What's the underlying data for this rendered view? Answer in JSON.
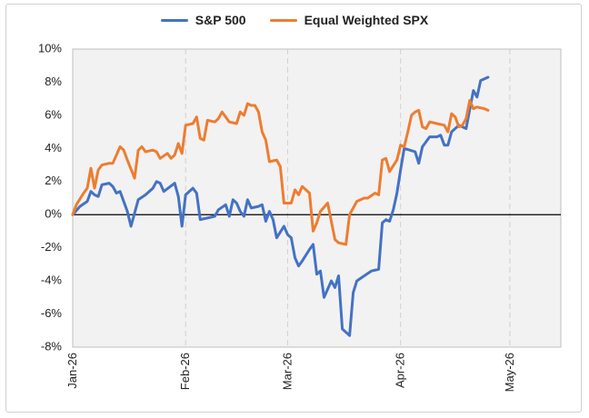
{
  "chart_data": {
    "type": "line",
    "title": "",
    "xlabel": "",
    "ylabel": "",
    "ylim": [
      -8,
      10
    ],
    "y_ticks": [
      "10%",
      "8%",
      "6%",
      "4%",
      "2%",
      "0%",
      "-2%",
      "-4%",
      "-6%",
      "-8%"
    ],
    "y_tick_values": [
      10,
      8,
      6,
      4,
      2,
      0,
      -2,
      -4,
      -6,
      -8
    ],
    "x_ticks": [
      "Jan-26",
      "Feb-26",
      "Mar-26",
      "Apr-26",
      "May-26"
    ],
    "x_tick_days": [
      0,
      31,
      59,
      90,
      120
    ],
    "xlim_days": [
      0,
      134
    ],
    "grid": "vertical dashed at month starts",
    "zero_line": true,
    "legend": "top-center",
    "background": "#f2f2f2",
    "series": [
      {
        "name": "S&P 500",
        "color": "#4472c4",
        "points": [
          [
            0,
            0.0
          ],
          [
            2,
            0.5
          ],
          [
            4,
            0.8
          ],
          [
            5,
            1.4
          ],
          [
            6,
            1.2
          ],
          [
            7,
            1.1
          ],
          [
            8,
            1.8
          ],
          [
            10,
            1.9
          ],
          [
            11,
            1.7
          ],
          [
            12,
            1.3
          ],
          [
            13,
            1.4
          ],
          [
            15,
            0.2
          ],
          [
            16,
            -0.7
          ],
          [
            18,
            0.9
          ],
          [
            20,
            1.2
          ],
          [
            22,
            1.6
          ],
          [
            23,
            2.0
          ],
          [
            24,
            1.9
          ],
          [
            25,
            1.4
          ],
          [
            28,
            1.9
          ],
          [
            29,
            1.1
          ],
          [
            30,
            -0.7
          ],
          [
            31,
            1.2
          ],
          [
            33,
            1.6
          ],
          [
            34,
            1.3
          ],
          [
            35,
            -0.3
          ],
          [
            39,
            -0.1
          ],
          [
            40,
            0.3
          ],
          [
            42,
            0.6
          ],
          [
            43,
            -0.1
          ],
          [
            44,
            0.9
          ],
          [
            45,
            0.7
          ],
          [
            46,
            0.2
          ],
          [
            47,
            -0.1
          ],
          [
            48,
            0.9
          ],
          [
            49,
            0.4
          ],
          [
            51,
            0.5
          ],
          [
            52,
            0.6
          ],
          [
            53,
            -0.4
          ],
          [
            54,
            0.2
          ],
          [
            55,
            -0.3
          ],
          [
            56,
            -1.4
          ],
          [
            58,
            -0.7
          ],
          [
            59,
            -1.2
          ],
          [
            60,
            -1.4
          ],
          [
            61,
            -2.6
          ],
          [
            62,
            -3.1
          ],
          [
            63,
            -2.8
          ],
          [
            65,
            -2.1
          ],
          [
            66,
            -1.8
          ],
          [
            67,
            -3.6
          ],
          [
            68,
            -3.4
          ],
          [
            69,
            -5.0
          ],
          [
            71,
            -4.0
          ],
          [
            72,
            -4.4
          ],
          [
            73,
            -3.7
          ],
          [
            74,
            -6.9
          ],
          [
            76,
            -7.3
          ],
          [
            77,
            -4.7
          ],
          [
            78,
            -4.0
          ],
          [
            80,
            -3.7
          ],
          [
            82,
            -3.4
          ],
          [
            84,
            -3.3
          ],
          [
            85,
            -0.5
          ],
          [
            86,
            -0.3
          ],
          [
            87,
            -0.4
          ],
          [
            88,
            0.3
          ],
          [
            89,
            1.3
          ],
          [
            90,
            2.7
          ],
          [
            91,
            4.0
          ],
          [
            94,
            3.8
          ],
          [
            95,
            3.1
          ],
          [
            96,
            4.1
          ],
          [
            98,
            4.7
          ],
          [
            100,
            4.7
          ],
          [
            101,
            4.8
          ],
          [
            102,
            4.2
          ],
          [
            103,
            4.2
          ],
          [
            104,
            5.0
          ],
          [
            106,
            5.4
          ],
          [
            107,
            5.3
          ],
          [
            108,
            5.2
          ],
          [
            110,
            7.5
          ],
          [
            111,
            7.1
          ],
          [
            112,
            8.1
          ],
          [
            114,
            8.3
          ]
        ]
      },
      {
        "name": "Equal Weighted SPX",
        "color": "#ed7d31",
        "points": [
          [
            0,
            0.0
          ],
          [
            1,
            0.6
          ],
          [
            3,
            1.3
          ],
          [
            4,
            1.6
          ],
          [
            5,
            2.8
          ],
          [
            6,
            1.6
          ],
          [
            7,
            2.7
          ],
          [
            8,
            3.0
          ],
          [
            10,
            3.1
          ],
          [
            11,
            3.1
          ],
          [
            13,
            4.1
          ],
          [
            14,
            3.9
          ],
          [
            15,
            3.3
          ],
          [
            17,
            2.2
          ],
          [
            18,
            3.9
          ],
          [
            19,
            4.1
          ],
          [
            20,
            3.8
          ],
          [
            22,
            3.9
          ],
          [
            23,
            3.8
          ],
          [
            24,
            3.4
          ],
          [
            26,
            3.7
          ],
          [
            27,
            3.4
          ],
          [
            28,
            3.6
          ],
          [
            29,
            4.3
          ],
          [
            30,
            3.7
          ],
          [
            31,
            5.4
          ],
          [
            33,
            5.5
          ],
          [
            34,
            5.9
          ],
          [
            35,
            4.6
          ],
          [
            36,
            4.5
          ],
          [
            37,
            5.7
          ],
          [
            39,
            5.6
          ],
          [
            40,
            5.8
          ],
          [
            41,
            6.2
          ],
          [
            43,
            5.6
          ],
          [
            45,
            5.5
          ],
          [
            46,
            6.2
          ],
          [
            47,
            6.0
          ],
          [
            48,
            6.7
          ],
          [
            49,
            6.6
          ],
          [
            50,
            6.6
          ],
          [
            51,
            6.2
          ],
          [
            52,
            5.0
          ],
          [
            53,
            4.5
          ],
          [
            54,
            3.2
          ],
          [
            56,
            3.3
          ],
          [
            57,
            2.9
          ],
          [
            58,
            0.7
          ],
          [
            60,
            0.7
          ],
          [
            61,
            1.5
          ],
          [
            62,
            1.2
          ],
          [
            63,
            1.7
          ],
          [
            65,
            1.3
          ],
          [
            66,
            -1.0
          ],
          [
            67,
            -0.5
          ],
          [
            68,
            0.2
          ],
          [
            70,
            0.7
          ],
          [
            72,
            -1.5
          ],
          [
            73,
            -1.7
          ],
          [
            75,
            -1.8
          ],
          [
            76,
            0.0
          ],
          [
            78,
            0.8
          ],
          [
            80,
            1.0
          ],
          [
            81,
            1.0
          ],
          [
            83,
            1.3
          ],
          [
            84,
            1.2
          ],
          [
            85,
            3.3
          ],
          [
            86,
            3.4
          ],
          [
            87,
            2.6
          ],
          [
            89,
            3.3
          ],
          [
            90,
            4.2
          ],
          [
            91,
            4.1
          ],
          [
            92,
            5.0
          ],
          [
            93,
            6.0
          ],
          [
            94,
            6.2
          ],
          [
            95,
            6.3
          ],
          [
            96,
            5.3
          ],
          [
            97,
            5.2
          ],
          [
            98,
            5.6
          ],
          [
            100,
            5.5
          ],
          [
            102,
            5.4
          ],
          [
            103,
            5.0
          ],
          [
            104,
            6.1
          ],
          [
            105,
            5.9
          ],
          [
            106,
            5.3
          ],
          [
            107,
            5.4
          ],
          [
            108,
            5.8
          ],
          [
            109,
            6.9
          ],
          [
            110,
            6.4
          ],
          [
            111,
            6.5
          ],
          [
            113,
            6.4
          ],
          [
            114,
            6.3
          ]
        ]
      }
    ]
  }
}
